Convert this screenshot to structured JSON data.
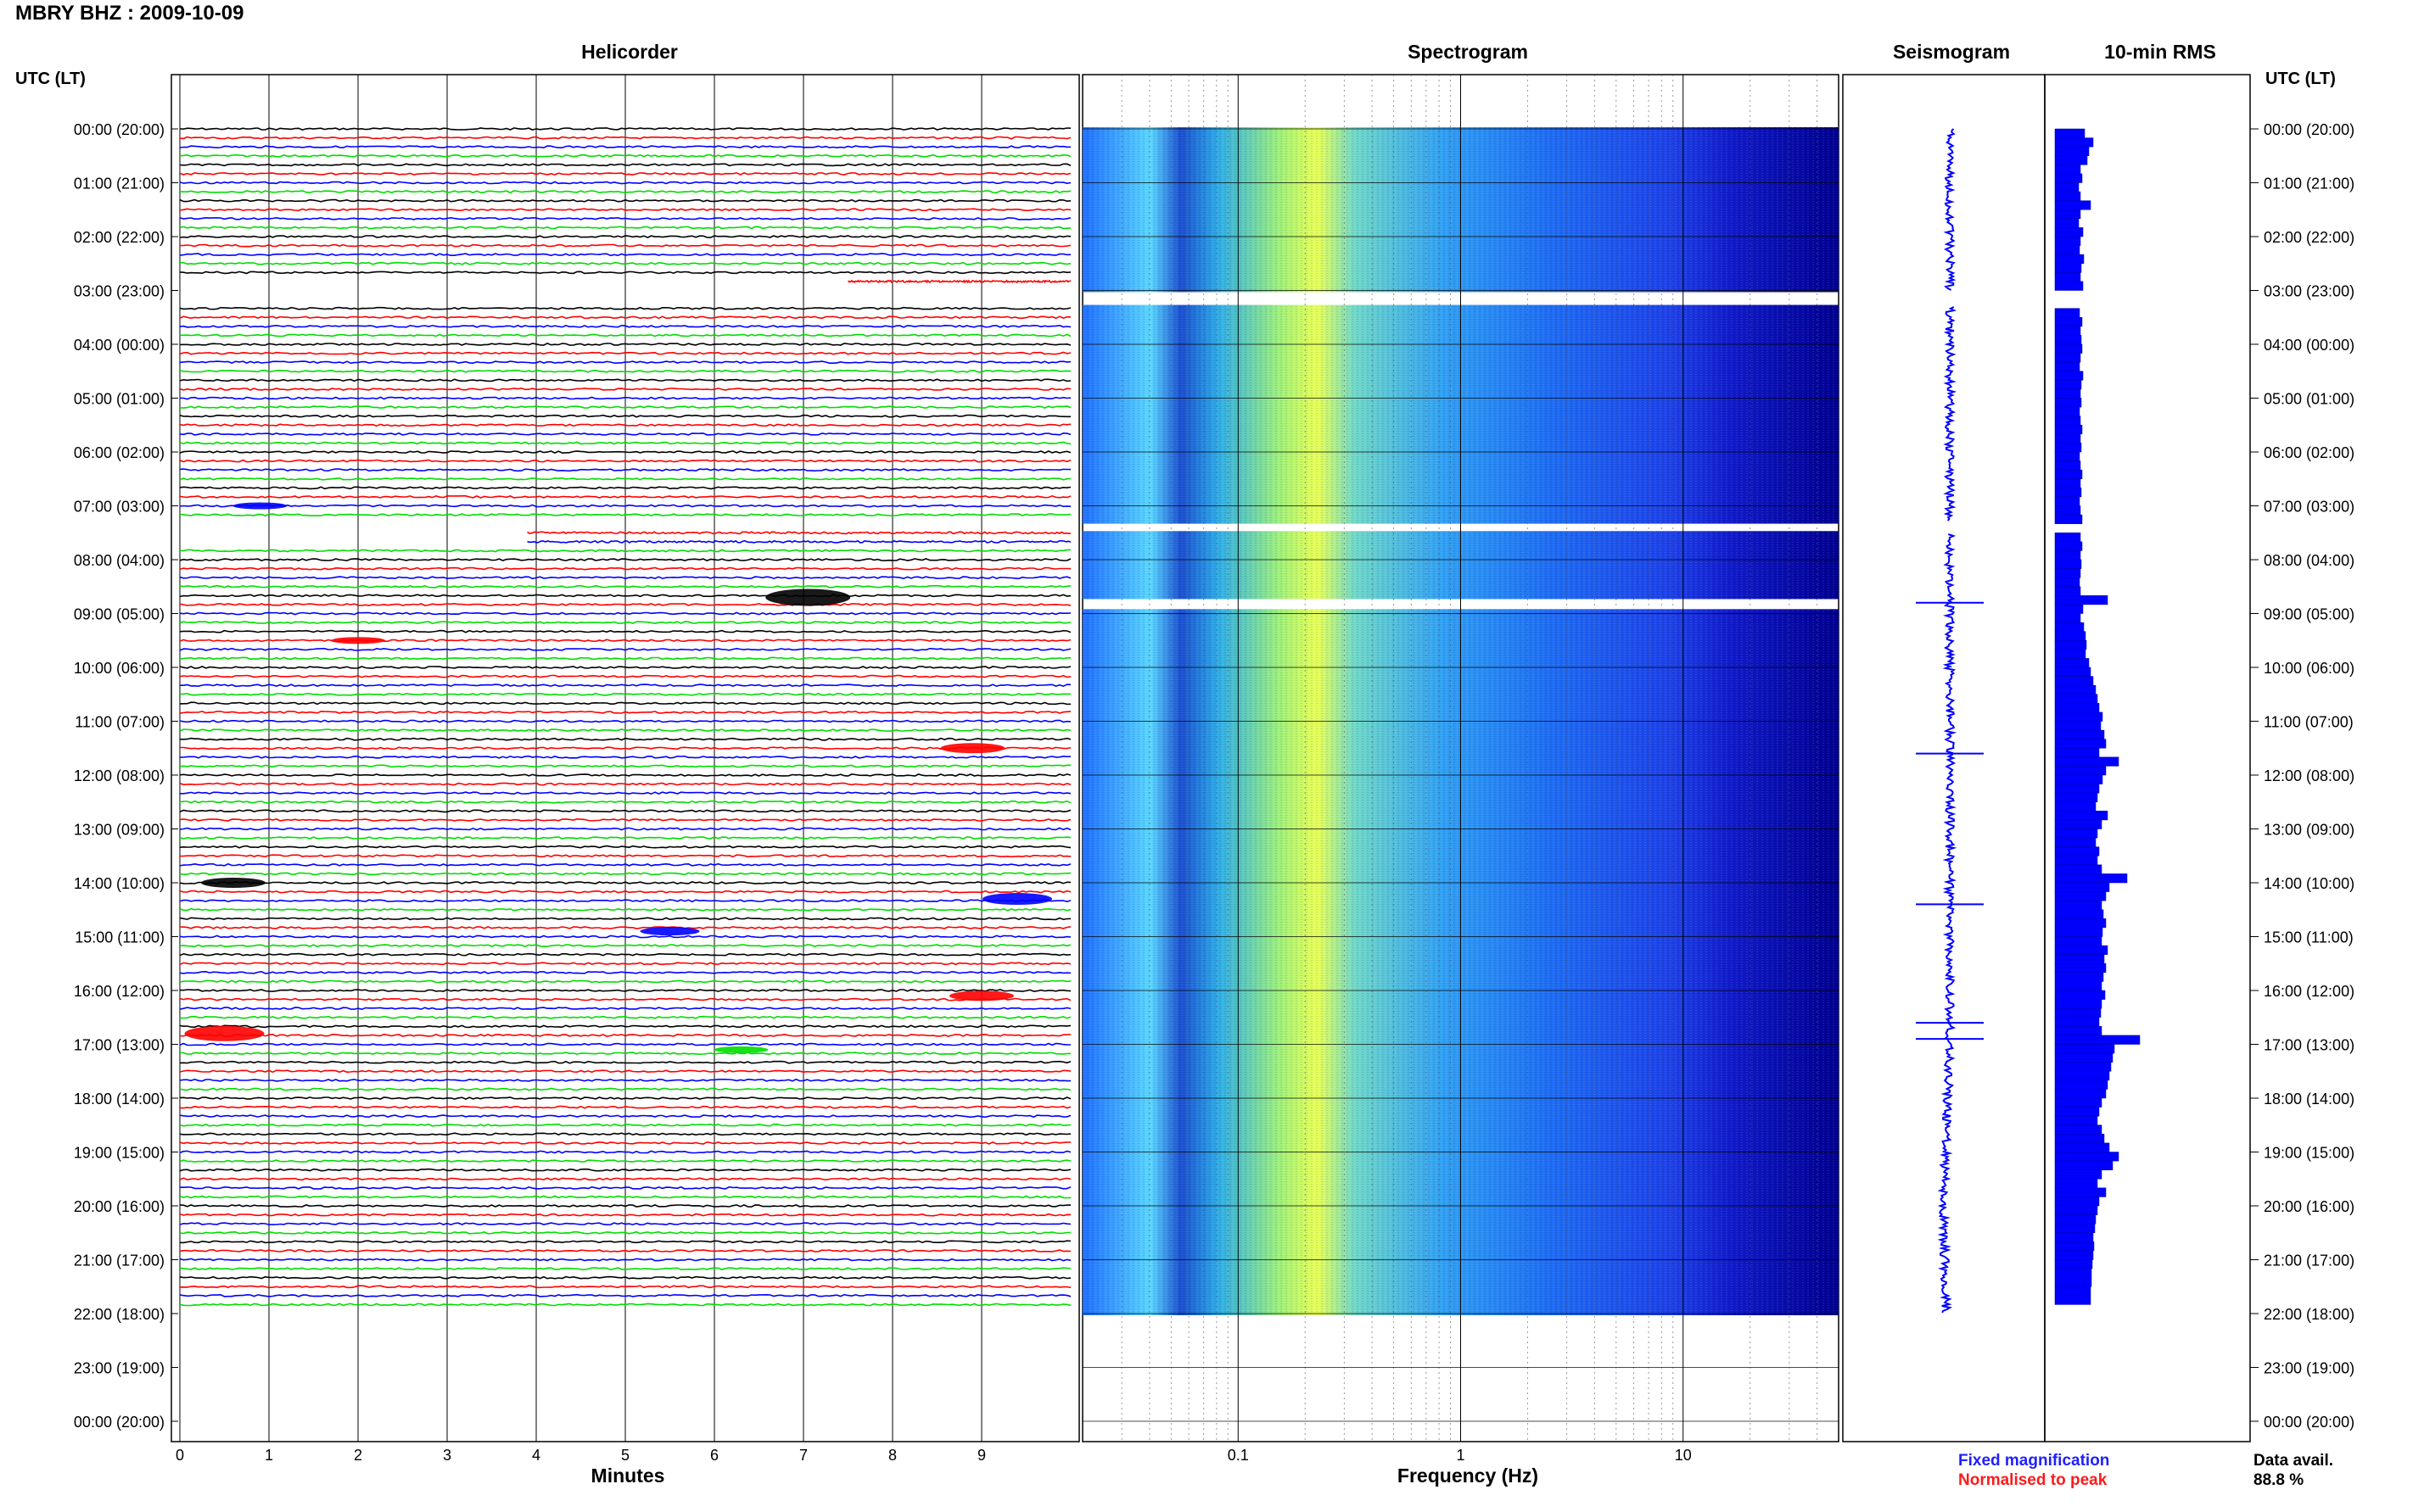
{
  "header": {
    "title": "MBRY BHZ : 2009-10-09",
    "helicorder_title": "Helicorder",
    "spectrogram_title": "Spectrogram",
    "seismogram_title": "Seismogram",
    "rms_title": "10-min RMS",
    "utc_label_left": "UTC (LT)",
    "utc_label_right": "UTC (LT)"
  },
  "axes": {
    "minutes_label": "Minutes",
    "frequency_label": "Frequency (Hz)"
  },
  "legend": {
    "fixed": "Fixed magnification",
    "normalised": "Normalised to peak",
    "fixed_color": "#1f1fff",
    "normalised_color": "#ff1a1a"
  },
  "data_avail": {
    "label": "Data avail.",
    "value": "88.8 %"
  },
  "colors": {
    "trace_cycle": [
      "#000000",
      "#ff0000",
      "#0000ff",
      "#00dd00"
    ],
    "spectrogram_low": "#00008f",
    "spectrogram_mid": "#3fa0ff",
    "spectrogram_high": "#f0ff40",
    "rms_bar": "#0000ff"
  },
  "chart_data": [
    {
      "type": "line",
      "title": "Helicorder",
      "xlabel": "Minutes",
      "x_ticks": [
        "0",
        "1",
        "2",
        "3",
        "4",
        "5",
        "6",
        "7",
        "8",
        "9"
      ],
      "xlim": [
        0,
        10
      ],
      "y_ticks": [
        "00:00 (20:00)",
        "01:00 (21:00)",
        "02:00 (22:00)",
        "03:00 (23:00)",
        "04:00 (00:00)",
        "05:00 (01:00)",
        "06:00 (02:00)",
        "07:00 (03:00)",
        "08:00 (04:00)",
        "09:00 (05:00)",
        "10:00 (06:00)",
        "11:00 (07:00)",
        "12:00 (08:00)",
        "13:00 (09:00)",
        "14:00 (10:00)",
        "15:00 (11:00)",
        "16:00 (12:00)",
        "17:00 (13:00)",
        "18:00 (14:00)",
        "19:00 (15:00)",
        "20:00 (16:00)",
        "21:00 (17:00)",
        "22:00 (18:00)",
        "23:00 (19:00)",
        "00:00 (20:00)"
      ],
      "traces_per_hour": 6,
      "hours_of_data": 22,
      "events": [
        {
          "hour": 7.0,
          "minute": 0.9,
          "color_index": 2,
          "amp": 4
        },
        {
          "hour": 8.7,
          "minute": 7.05,
          "color_index": 0,
          "amp": 10
        },
        {
          "hour": 9.5,
          "minute": 2.0,
          "color_index": 1,
          "amp": 4
        },
        {
          "hour": 11.5,
          "minute": 8.9,
          "color_index": 1,
          "amp": 6
        },
        {
          "hour": 14.0,
          "minute": 0.6,
          "color_index": 0,
          "amp": 6
        },
        {
          "hour": 14.3,
          "minute": 9.4,
          "color_index": 2,
          "amp": 7
        },
        {
          "hour": 14.9,
          "minute": 5.5,
          "color_index": 2,
          "amp": 5
        },
        {
          "hour": 16.1,
          "minute": 9.0,
          "color_index": 1,
          "amp": 6
        },
        {
          "hour": 16.8,
          "minute": 0.5,
          "color_index": 1,
          "amp": 9
        },
        {
          "hour": 17.1,
          "minute": 6.3,
          "color_index": 3,
          "amp": 4
        }
      ],
      "gaps": [
        {
          "hour_start": 3.0,
          "minute_start": 0,
          "minute_end": 7.5
        },
        {
          "hour_start": 7.5,
          "minute_start": 0,
          "minute_end": 3.9
        }
      ]
    },
    {
      "type": "heatmap",
      "title": "Spectrogram",
      "xlabel": "Frequency (Hz)",
      "x_scale": "log",
      "x_ticks": [
        "0.1",
        "1",
        "10"
      ],
      "xlim": [
        0.02,
        50
      ],
      "peak_frequency_hz": 0.25,
      "data_hours": [
        [
          0,
          3
        ],
        [
          3.3,
          7.3
        ],
        [
          7.5,
          8.7
        ],
        [
          8.95,
          20.0
        ],
        [
          20.05,
          22.0
        ]
      ]
    },
    {
      "type": "line",
      "title": "Seismogram",
      "note_series": [
        "Fixed magnification",
        "Normalised to peak"
      ],
      "spikes_hours": [
        8.8,
        11.6,
        14.4,
        16.6,
        16.9
      ]
    },
    {
      "type": "bar",
      "title": "10-min RMS",
      "orientation": "horizontal",
      "values_relative": [
        0.35,
        0.45,
        0.4,
        0.38,
        0.3,
        0.32,
        0.28,
        0.3,
        0.42,
        0.3,
        0.28,
        0.33,
        0.3,
        0.29,
        0.34,
        0.31,
        0.3,
        0.33,
        0.31,
        0.3,
        0.29,
        0.32,
        0.3,
        0.31,
        0.32,
        0.3,
        0.29,
        0.33,
        0.31,
        0.3,
        0.31,
        0.29,
        0.3,
        0.32,
        0.3,
        0.31,
        0.29,
        0.3,
        0.32,
        0.3,
        0.31,
        0.29,
        0.3,
        0.32,
        0.34,
        0.3,
        0.32,
        0.3,
        0.31,
        0.3,
        0.29,
        0.3,
        0.62,
        0.33,
        0.3,
        0.34,
        0.36,
        0.37,
        0.36,
        0.4,
        0.42,
        0.45,
        0.48,
        0.5,
        0.52,
        0.56,
        0.54,
        0.58,
        0.6,
        0.52,
        0.75,
        0.6,
        0.56,
        0.52,
        0.5,
        0.48,
        0.62,
        0.55,
        0.5,
        0.48,
        0.52,
        0.5,
        0.55,
        0.85,
        0.64,
        0.6,
        0.55,
        0.57,
        0.6,
        0.56,
        0.55,
        0.62,
        0.58,
        0.6,
        0.57,
        0.55,
        0.59,
        0.55,
        0.54,
        0.52,
        0.55,
        1.0,
        0.7,
        0.68,
        0.66,
        0.64,
        0.62,
        0.6,
        0.55,
        0.52,
        0.5,
        0.55,
        0.58,
        0.64,
        0.75,
        0.68,
        0.55,
        0.5,
        0.6,
        0.52,
        0.5,
        0.48,
        0.47,
        0.45,
        0.46,
        0.45,
        0.44,
        0.43,
        0.43,
        0.42,
        0.42
      ]
    }
  ]
}
